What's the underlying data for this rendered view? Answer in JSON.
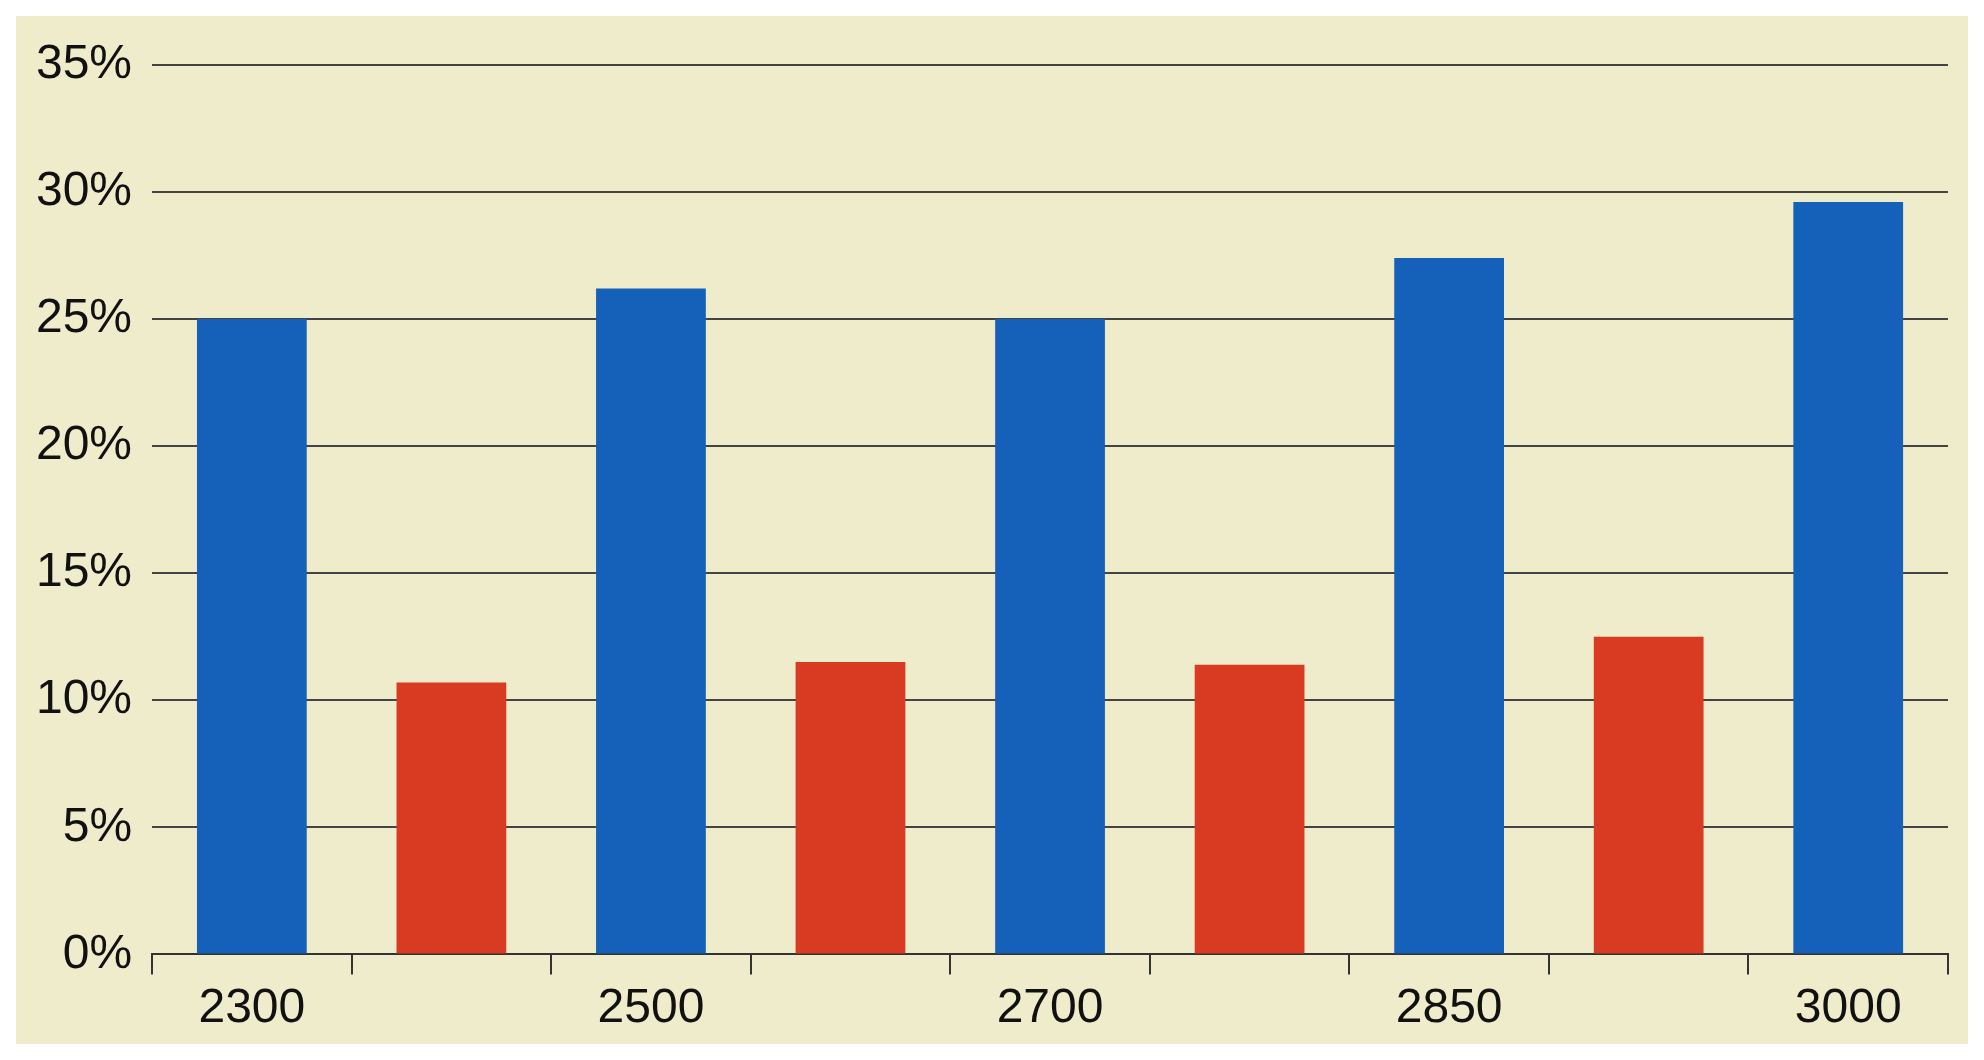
{
  "chart_data": {
    "type": "bar",
    "categories": [
      "2300",
      null,
      "2500",
      null,
      "2700",
      null,
      "2850",
      null,
      "3000"
    ],
    "values": [
      25,
      10.7,
      26.2,
      11.5,
      25,
      11.4,
      27.4,
      12.5,
      29.6
    ],
    "colors": [
      "#1560b8",
      "#d83a22",
      "#1560b8",
      "#d83a22",
      "#1560b8",
      "#d83a22",
      "#1560b8",
      "#d83a22",
      "#1560b8"
    ],
    "ylim": [
      0,
      35
    ],
    "yticks": [
      {
        "value": 0,
        "label": "0%"
      },
      {
        "value": 5,
        "label": "5%"
      },
      {
        "value": 10,
        "label": "10%"
      },
      {
        "value": 15,
        "label": "15%"
      },
      {
        "value": 20,
        "label": "20%"
      },
      {
        "value": 25,
        "label": "25%"
      },
      {
        "value": 30,
        "label": "30%"
      },
      {
        "value": 35,
        "label": "35%"
      }
    ],
    "grid": "y",
    "legend": false
  }
}
